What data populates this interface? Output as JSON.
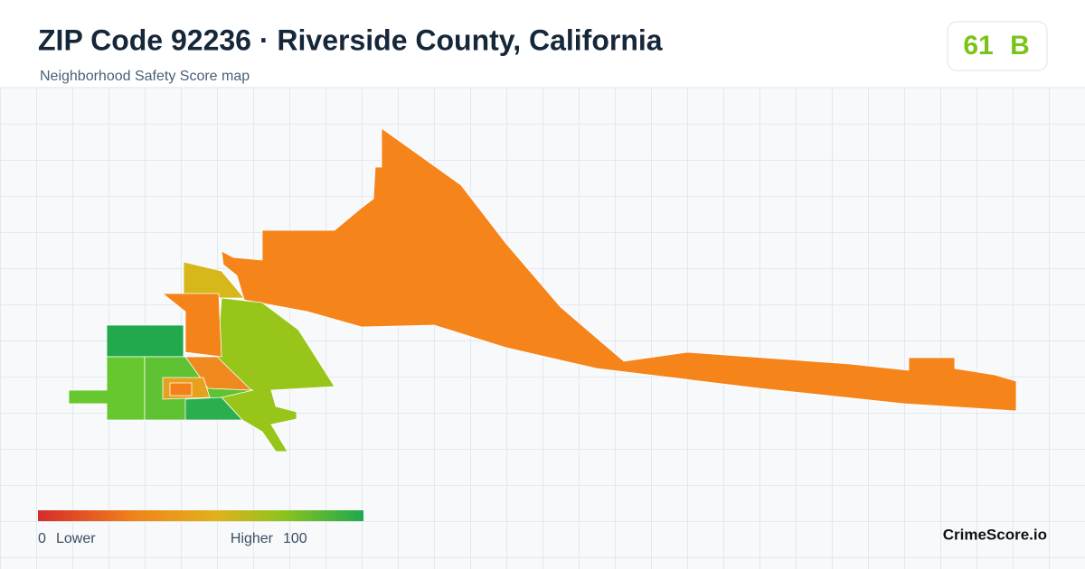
{
  "header": {
    "title": "ZIP Code 92236 · Riverside County, California",
    "subtitle": "Neighborhood Safety Score map"
  },
  "badge": {
    "score": 61,
    "grade": "B"
  },
  "legend": {
    "min": 0,
    "min_label": "Lower",
    "max_label": "Higher",
    "max": 100
  },
  "brand": "CrimeScore.io"
}
